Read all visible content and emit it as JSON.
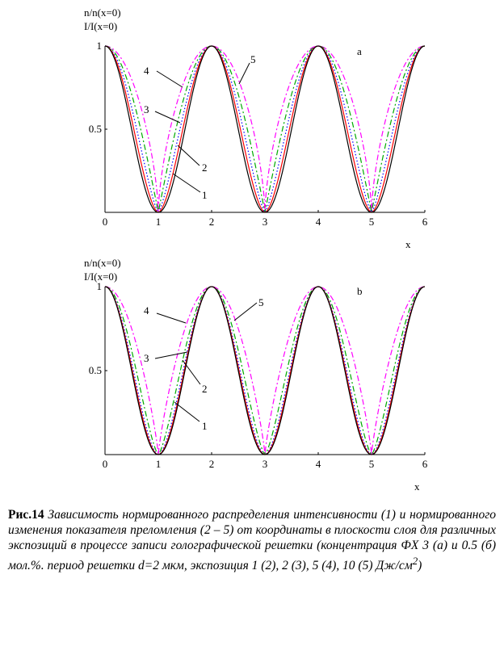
{
  "figure": {
    "panels": [
      {
        "id": "a",
        "ylabel_lines": [
          "n/n(x=0)",
          "I/I(x=0)"
        ],
        "xlabel": "x",
        "panel_label": "a",
        "curve_labels": [
          "1",
          "2",
          "3",
          "4",
          "5"
        ]
      },
      {
        "id": "b",
        "ylabel_lines": [
          "n/n(x=0)",
          "I/I(x=0)"
        ],
        "xlabel": "x",
        "panel_label": "b",
        "curve_labels": [
          "1",
          "2",
          "3",
          "4",
          "5"
        ]
      }
    ]
  },
  "chart_data": [
    {
      "type": "line",
      "panel": "a",
      "xlabel": "x",
      "ylabel": "n/n(x=0) I/I(x=0)",
      "xlim": [
        0,
        6
      ],
      "ylim": [
        0,
        1
      ],
      "xticks": [
        "0",
        "1",
        "2",
        "3",
        "4",
        "5",
        "6"
      ],
      "yticks": [
        "0.5",
        "1"
      ],
      "series": [
        {
          "name": "1",
          "color": "#000000",
          "style": "solid",
          "function": "cos^2(pi*x/2)",
          "x": [
            0,
            0.5,
            1,
            1.5,
            2,
            2.5,
            3,
            3.5,
            4,
            4.5,
            5,
            5.5,
            6
          ],
          "values": [
            1,
            0.5,
            0,
            0.5,
            1,
            0.5,
            0,
            0.5,
            1,
            0.5,
            0,
            0.5,
            1
          ]
        },
        {
          "name": "2",
          "color": "#ff0000",
          "style": "solid",
          "x": [
            0,
            0.5,
            1,
            1.5,
            2,
            2.5,
            3,
            3.5,
            4,
            4.5,
            5,
            5.5,
            6
          ],
          "values": [
            1,
            0.56,
            0,
            0.56,
            1,
            0.56,
            0,
            0.56,
            1,
            0.56,
            0,
            0.56,
            1
          ]
        },
        {
          "name": "3",
          "color": "#0000ff",
          "style": "dotted",
          "x": [
            0,
            0.5,
            1,
            1.5,
            2,
            2.5,
            3,
            3.5,
            4,
            4.5,
            5,
            5.5,
            6
          ],
          "values": [
            1,
            0.63,
            0,
            0.63,
            1,
            0.63,
            0,
            0.63,
            1,
            0.63,
            0,
            0.63,
            1
          ]
        },
        {
          "name": "4",
          "color": "#00aa00",
          "style": "dash-dot",
          "x": [
            0,
            0.5,
            1,
            1.5,
            2,
            2.5,
            3,
            3.5,
            4,
            4.5,
            5,
            5.5,
            6
          ],
          "values": [
            1,
            0.71,
            0,
            0.71,
            1,
            0.71,
            0,
            0.71,
            1,
            0.71,
            0,
            0.71,
            1
          ]
        },
        {
          "name": "5",
          "color": "#ff00ff",
          "style": "dash-dot",
          "x": [
            0,
            0.5,
            1,
            1.5,
            2,
            2.5,
            3,
            3.5,
            4,
            4.5,
            5,
            5.5,
            6
          ],
          "values": [
            1,
            0.8,
            0,
            0.8,
            1,
            0.8,
            0,
            0.8,
            1,
            0.8,
            0,
            0.8,
            1
          ]
        }
      ],
      "grid": false
    },
    {
      "type": "line",
      "panel": "b",
      "xlabel": "x",
      "ylabel": "n/n(x=0) I/I(x=0)",
      "xlim": [
        0,
        6
      ],
      "ylim": [
        0,
        1
      ],
      "xticks": [
        "0",
        "1",
        "2",
        "3",
        "4",
        "5",
        "6"
      ],
      "yticks": [
        "0.5",
        "1"
      ],
      "series": [
        {
          "name": "1",
          "color": "#000000",
          "style": "solid",
          "function": "cos^2(pi*x/2)",
          "x": [
            0,
            0.5,
            1,
            1.5,
            2,
            2.5,
            3,
            3.5,
            4,
            4.5,
            5,
            5.5,
            6
          ],
          "values": [
            1,
            0.5,
            0,
            0.5,
            1,
            0.5,
            0,
            0.5,
            1,
            0.5,
            0,
            0.5,
            1
          ]
        },
        {
          "name": "2",
          "color": "#ff0000",
          "style": "solid",
          "x": [
            0,
            0.5,
            1,
            1.5,
            2,
            2.5,
            3,
            3.5,
            4,
            4.5,
            5,
            5.5,
            6
          ],
          "values": [
            1,
            0.52,
            0,
            0.52,
            1,
            0.52,
            0,
            0.52,
            1,
            0.52,
            0,
            0.52,
            1
          ]
        },
        {
          "name": "3",
          "color": "#0000ff",
          "style": "dotted",
          "x": [
            0,
            0.5,
            1,
            1.5,
            2,
            2.5,
            3,
            3.5,
            4,
            4.5,
            5,
            5.5,
            6
          ],
          "values": [
            1,
            0.55,
            0,
            0.55,
            1,
            0.55,
            0,
            0.55,
            1,
            0.55,
            0,
            0.55,
            1
          ]
        },
        {
          "name": "4",
          "color": "#00aa00",
          "style": "dash-dot",
          "x": [
            0,
            0.5,
            1,
            1.5,
            2,
            2.5,
            3,
            3.5,
            4,
            4.5,
            5,
            5.5,
            6
          ],
          "values": [
            1,
            0.62,
            0,
            0.62,
            1,
            0.62,
            0,
            0.62,
            1,
            0.62,
            0,
            0.62,
            1
          ]
        },
        {
          "name": "5",
          "color": "#ff00ff",
          "style": "dash-dot",
          "x": [
            0,
            0.5,
            1,
            1.5,
            2,
            2.5,
            3,
            3.5,
            4,
            4.5,
            5,
            5.5,
            6
          ],
          "values": [
            1,
            0.75,
            0,
            0.75,
            1,
            0.75,
            0,
            0.75,
            1,
            0.75,
            0,
            0.75,
            1
          ]
        }
      ],
      "grid": false
    }
  ],
  "caption": {
    "label": "Рис.14",
    "text": "Зависимость нормированного распределения интенсивности (1) и нормированного изменения показателя преломления (2 – 5) от координаты в плоскости слоя для различных экспозиций в процессе записи голографической решетки (концентрация ФХ 3 (а) и 0.5 (б) мол.%. период решетки d=2 мкм, экспозиция 1 (2), 2 (3), 5 (4), 10 (5) Дж/см",
    "superscript": "2",
    "closing": ")"
  }
}
